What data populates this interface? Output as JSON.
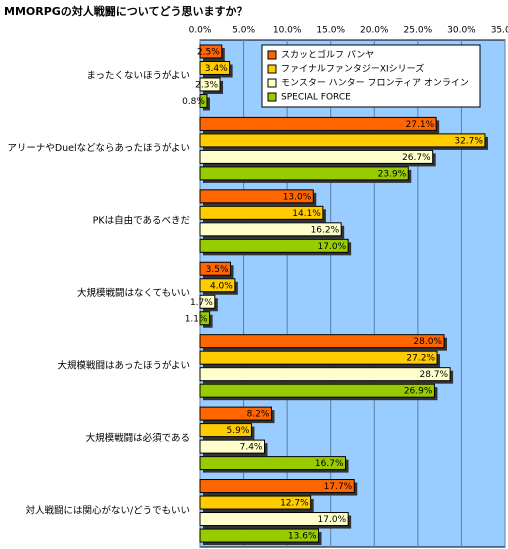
{
  "chart_data": {
    "type": "bar",
    "orientation": "horizontal",
    "title": "MMORPGの対人戦闘についてどう思いますか？",
    "categories": [
      "まったくないほうがよい",
      "アリーナやDuelなどならあったほうがよい",
      "PKは自由であるべきだ",
      "大規模戦闘はなくてもいい",
      "大規模戦闘はあったほうがよい",
      "大規模戦闘は必須である",
      "対人戦闘には関心がない/どうでもいい"
    ],
    "series": [
      {
        "name": "スカッとゴルフ パンヤ",
        "color": "#ff6600",
        "values": [
          2.5,
          27.1,
          13.0,
          3.5,
          28.0,
          8.2,
          17.7
        ],
        "value_labels": [
          "2.5%",
          "27.1%",
          "13.0%",
          "3.5%",
          "28.0%",
          "8.2%",
          "17.7%"
        ]
      },
      {
        "name": "ファイナルファンタジーXIシリーズ",
        "color": "#ffcc00",
        "values": [
          3.4,
          32.7,
          14.1,
          4.0,
          27.2,
          5.9,
          12.7
        ],
        "value_labels": [
          "3.4%",
          "32.7%",
          "14.1%",
          "4.0%",
          "27.2%",
          "5.9%",
          "12.7%"
        ]
      },
      {
        "name": "モンスター ハンター フロンティア オンライン",
        "color": "#ffffcc",
        "values": [
          2.3,
          26.7,
          16.2,
          1.7,
          28.7,
          7.4,
          17.0
        ],
        "value_labels": [
          "2.3%",
          "26.7%",
          "16.2%",
          "1.7%",
          "28.7%",
          "7.4%",
          "17.0%"
        ]
      },
      {
        "name": "SPECIAL FORCE",
        "color": "#99cc00",
        "values": [
          0.8,
          23.9,
          17.0,
          1.1,
          26.9,
          16.7,
          13.6
        ],
        "value_labels": [
          "0.8%",
          "23.9%",
          "17.0%",
          "1.1%",
          "26.9%",
          "16.7%",
          "13.6%"
        ]
      }
    ],
    "xlim": [
      0,
      35
    ],
    "xticks": [
      {
        "value": 0,
        "label": "0.0%"
      },
      {
        "value": 5,
        "label": "5.0%"
      },
      {
        "value": 10,
        "label": "10.0%"
      },
      {
        "value": 15,
        "label": "15.0%"
      },
      {
        "value": 20,
        "label": "20.0%"
      },
      {
        "value": 25,
        "label": "25.0%"
      },
      {
        "value": 30,
        "label": "30.0%"
      },
      {
        "value": 35,
        "label": "35.0%"
      }
    ],
    "grid": true,
    "legend": "upper right",
    "background": "#99ccff"
  }
}
